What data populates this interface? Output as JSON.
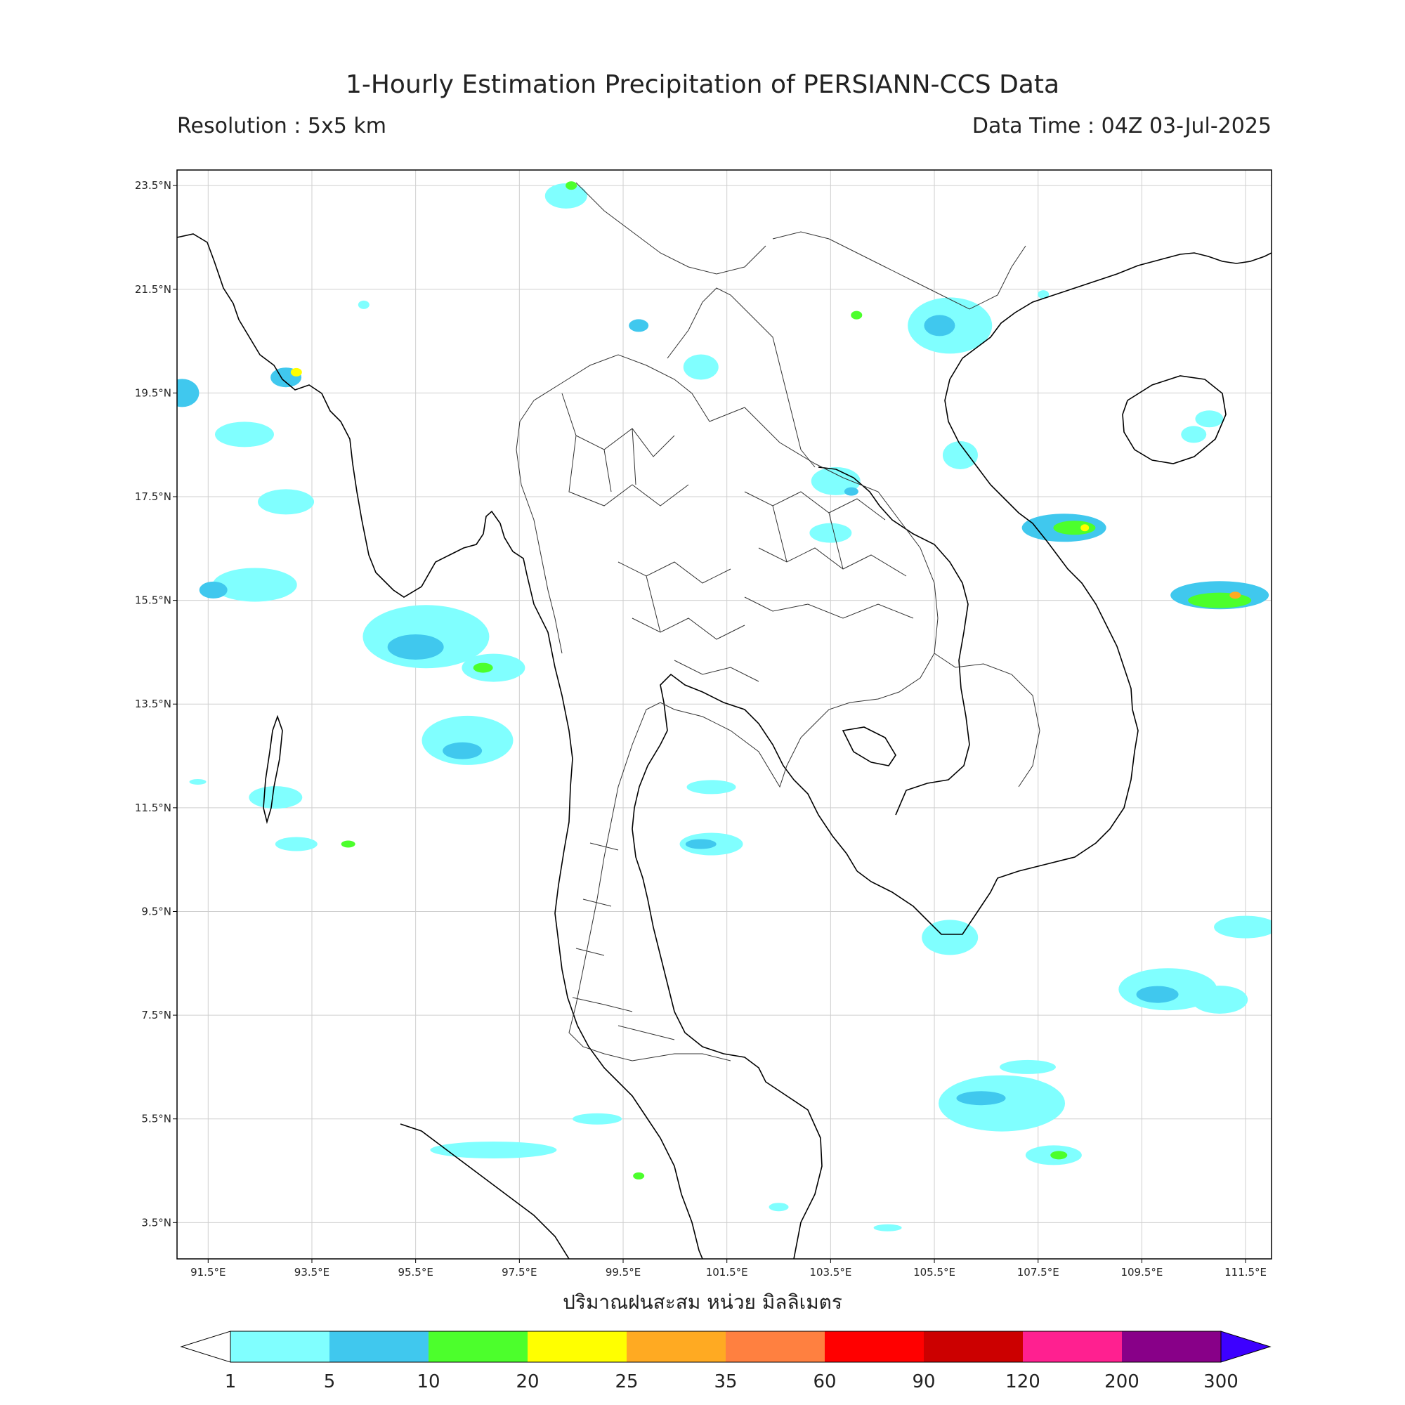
{
  "header": {
    "title": "1-Hourly Estimation Precipitation of PERSIANN-CCS Data",
    "resolution": "Resolution : 5x5 km",
    "data_time": "Data Time : 04Z 03-Jul-2025"
  },
  "map": {
    "lon_range": [
      90.9,
      112.0
    ],
    "lat_range": [
      2.8,
      23.8
    ],
    "lon_ticks": [
      "91.5°E",
      "93.5°E",
      "95.5°E",
      "97.5°E",
      "99.5°E",
      "101.5°E",
      "103.5°E",
      "105.5°E",
      "107.5°E",
      "109.5°E",
      "111.5°E"
    ],
    "lat_ticks": [
      "23.5°N",
      "21.5°N",
      "19.5°N",
      "17.5°N",
      "15.5°N",
      "13.5°N",
      "11.5°N",
      "9.5°N",
      "7.5°N",
      "5.5°N",
      "3.5°N"
    ],
    "grid": true,
    "xlabel": "ปริมาณฝนสะสม หน่วย มิลลิเมตร"
  },
  "colorbar": {
    "unit": "mm",
    "levels": [
      "1",
      "5",
      "10",
      "20",
      "25",
      "35",
      "60",
      "90",
      "120",
      "200",
      "300"
    ],
    "colors": [
      "#80ffff",
      "#40c8ee",
      "#4cff2c",
      "#ffff00",
      "#ffaa22",
      "#ff8040",
      "#ff0000",
      "#cc0000",
      "#ff2090",
      "#880088"
    ],
    "under_color": "#ffffff",
    "over_color": "#3d00ff"
  },
  "precip_areas": [
    {
      "lon": 92.2,
      "lat": 18.7,
      "rx": 42,
      "ry": 18,
      "level": 0
    },
    {
      "lon": 93.0,
      "lat": 17.4,
      "rx": 40,
      "ry": 18,
      "level": 0
    },
    {
      "lon": 92.4,
      "lat": 15.8,
      "rx": 60,
      "ry": 24,
      "level": 0
    },
    {
      "lon": 91.6,
      "lat": 15.7,
      "rx": 20,
      "ry": 12,
      "level": 1
    },
    {
      "lon": 95.7,
      "lat": 14.8,
      "rx": 90,
      "ry": 45,
      "level": 0
    },
    {
      "lon": 95.5,
      "lat": 14.6,
      "rx": 40,
      "ry": 18,
      "level": 1
    },
    {
      "lon": 97.0,
      "lat": 14.2,
      "rx": 45,
      "ry": 20,
      "level": 0
    },
    {
      "lon": 96.8,
      "lat": 14.2,
      "rx": 14,
      "ry": 7,
      "level": 2
    },
    {
      "lon": 96.5,
      "lat": 12.8,
      "rx": 65,
      "ry": 35,
      "level": 0
    },
    {
      "lon": 96.4,
      "lat": 12.6,
      "rx": 28,
      "ry": 12,
      "level": 1
    },
    {
      "lon": 93.0,
      "lat": 19.8,
      "rx": 22,
      "ry": 14,
      "level": 1
    },
    {
      "lon": 93.2,
      "lat": 19.9,
      "rx": 8,
      "ry": 6,
      "level": 3
    },
    {
      "lon": 91.0,
      "lat": 19.5,
      "rx": 24,
      "ry": 20,
      "level": 1
    },
    {
      "lon": 92.8,
      "lat": 11.7,
      "rx": 38,
      "ry": 16,
      "level": 0
    },
    {
      "lon": 93.2,
      "lat": 10.8,
      "rx": 30,
      "ry": 10,
      "level": 0
    },
    {
      "lon": 99.8,
      "lat": 20.8,
      "rx": 14,
      "ry": 9,
      "level": 1
    },
    {
      "lon": 105.8,
      "lat": 20.8,
      "rx": 60,
      "ry": 40,
      "level": 0
    },
    {
      "lon": 105.6,
      "lat": 20.8,
      "rx": 22,
      "ry": 15,
      "level": 1
    },
    {
      "lon": 103.6,
      "lat": 17.8,
      "rx": 35,
      "ry": 20,
      "level": 0
    },
    {
      "lon": 108.0,
      "lat": 16.9,
      "rx": 60,
      "ry": 20,
      "level": 1
    },
    {
      "lon": 108.2,
      "lat": 16.9,
      "rx": 30,
      "ry": 10,
      "level": 2
    },
    {
      "lon": 108.4,
      "lat": 16.9,
      "rx": 6,
      "ry": 5,
      "level": 3
    },
    {
      "lon": 111.0,
      "lat": 15.6,
      "rx": 70,
      "ry": 20,
      "level": 1
    },
    {
      "lon": 111.0,
      "lat": 15.5,
      "rx": 45,
      "ry": 11,
      "level": 2
    },
    {
      "lon": 111.3,
      "lat": 15.6,
      "rx": 8,
      "ry": 5,
      "level": 4
    },
    {
      "lon": 106.0,
      "lat": 18.3,
      "rx": 25,
      "ry": 20,
      "level": 0
    },
    {
      "lon": 101.2,
      "lat": 10.8,
      "rx": 45,
      "ry": 16,
      "level": 0
    },
    {
      "lon": 101.0,
      "lat": 10.8,
      "rx": 22,
      "ry": 7,
      "level": 1
    },
    {
      "lon": 101.2,
      "lat": 11.9,
      "rx": 35,
      "ry": 10,
      "level": 0
    },
    {
      "lon": 105.8,
      "lat": 9.0,
      "rx": 40,
      "ry": 25,
      "level": 0
    },
    {
      "lon": 110.0,
      "lat": 8.0,
      "rx": 70,
      "ry": 30,
      "level": 0
    },
    {
      "lon": 109.8,
      "lat": 7.9,
      "rx": 30,
      "ry": 12,
      "level": 1
    },
    {
      "lon": 111.0,
      "lat": 7.8,
      "rx": 40,
      "ry": 20,
      "level": 0
    },
    {
      "lon": 111.5,
      "lat": 9.2,
      "rx": 45,
      "ry": 16,
      "level": 0
    },
    {
      "lon": 106.8,
      "lat": 5.8,
      "rx": 90,
      "ry": 40,
      "level": 0
    },
    {
      "lon": 106.4,
      "lat": 5.9,
      "rx": 35,
      "ry": 10,
      "level": 1
    },
    {
      "lon": 107.3,
      "lat": 6.5,
      "rx": 40,
      "ry": 10,
      "level": 0
    },
    {
      "lon": 107.8,
      "lat": 4.8,
      "rx": 40,
      "ry": 14,
      "level": 0
    },
    {
      "lon": 107.9,
      "lat": 4.8,
      "rx": 12,
      "ry": 6,
      "level": 2
    },
    {
      "lon": 97.0,
      "lat": 4.9,
      "rx": 90,
      "ry": 12,
      "level": 0
    },
    {
      "lon": 99.0,
      "lat": 5.5,
      "rx": 35,
      "ry": 8,
      "level": 0
    },
    {
      "lon": 110.5,
      "lat": 18.7,
      "rx": 18,
      "ry": 12,
      "level": 0
    },
    {
      "lon": 110.8,
      "lat": 19.0,
      "rx": 20,
      "ry": 12,
      "level": 0
    },
    {
      "lon": 94.5,
      "lat": 21.2,
      "rx": 8,
      "ry": 6,
      "level": 0
    },
    {
      "lon": 98.4,
      "lat": 23.3,
      "rx": 30,
      "ry": 18,
      "level": 0
    },
    {
      "lon": 98.5,
      "lat": 23.5,
      "rx": 8,
      "ry": 6,
      "level": 2
    },
    {
      "lon": 101.0,
      "lat": 20.0,
      "rx": 25,
      "ry": 18,
      "level": 0
    },
    {
      "lon": 104.0,
      "lat": 21.0,
      "rx": 8,
      "ry": 6,
      "level": 2
    },
    {
      "lon": 107.6,
      "lat": 21.4,
      "rx": 8,
      "ry": 6,
      "level": 0
    },
    {
      "lon": 99.8,
      "lat": 4.4,
      "rx": 8,
      "ry": 5,
      "level": 2
    },
    {
      "lon": 94.2,
      "lat": 10.8,
      "rx": 10,
      "ry": 5,
      "level": 2
    },
    {
      "lon": 103.5,
      "lat": 16.8,
      "rx": 30,
      "ry": 14,
      "level": 0
    },
    {
      "lon": 91.3,
      "lat": 12.0,
      "rx": 12,
      "ry": 4,
      "level": 0
    },
    {
      "lon": 103.9,
      "lat": 17.6,
      "rx": 10,
      "ry": 6,
      "level": 1
    },
    {
      "lon": 104.6,
      "lat": 3.4,
      "rx": 20,
      "ry": 5,
      "level": 0
    },
    {
      "lon": 102.5,
      "lat": 3.8,
      "rx": 14,
      "ry": 6,
      "level": 0
    }
  ]
}
